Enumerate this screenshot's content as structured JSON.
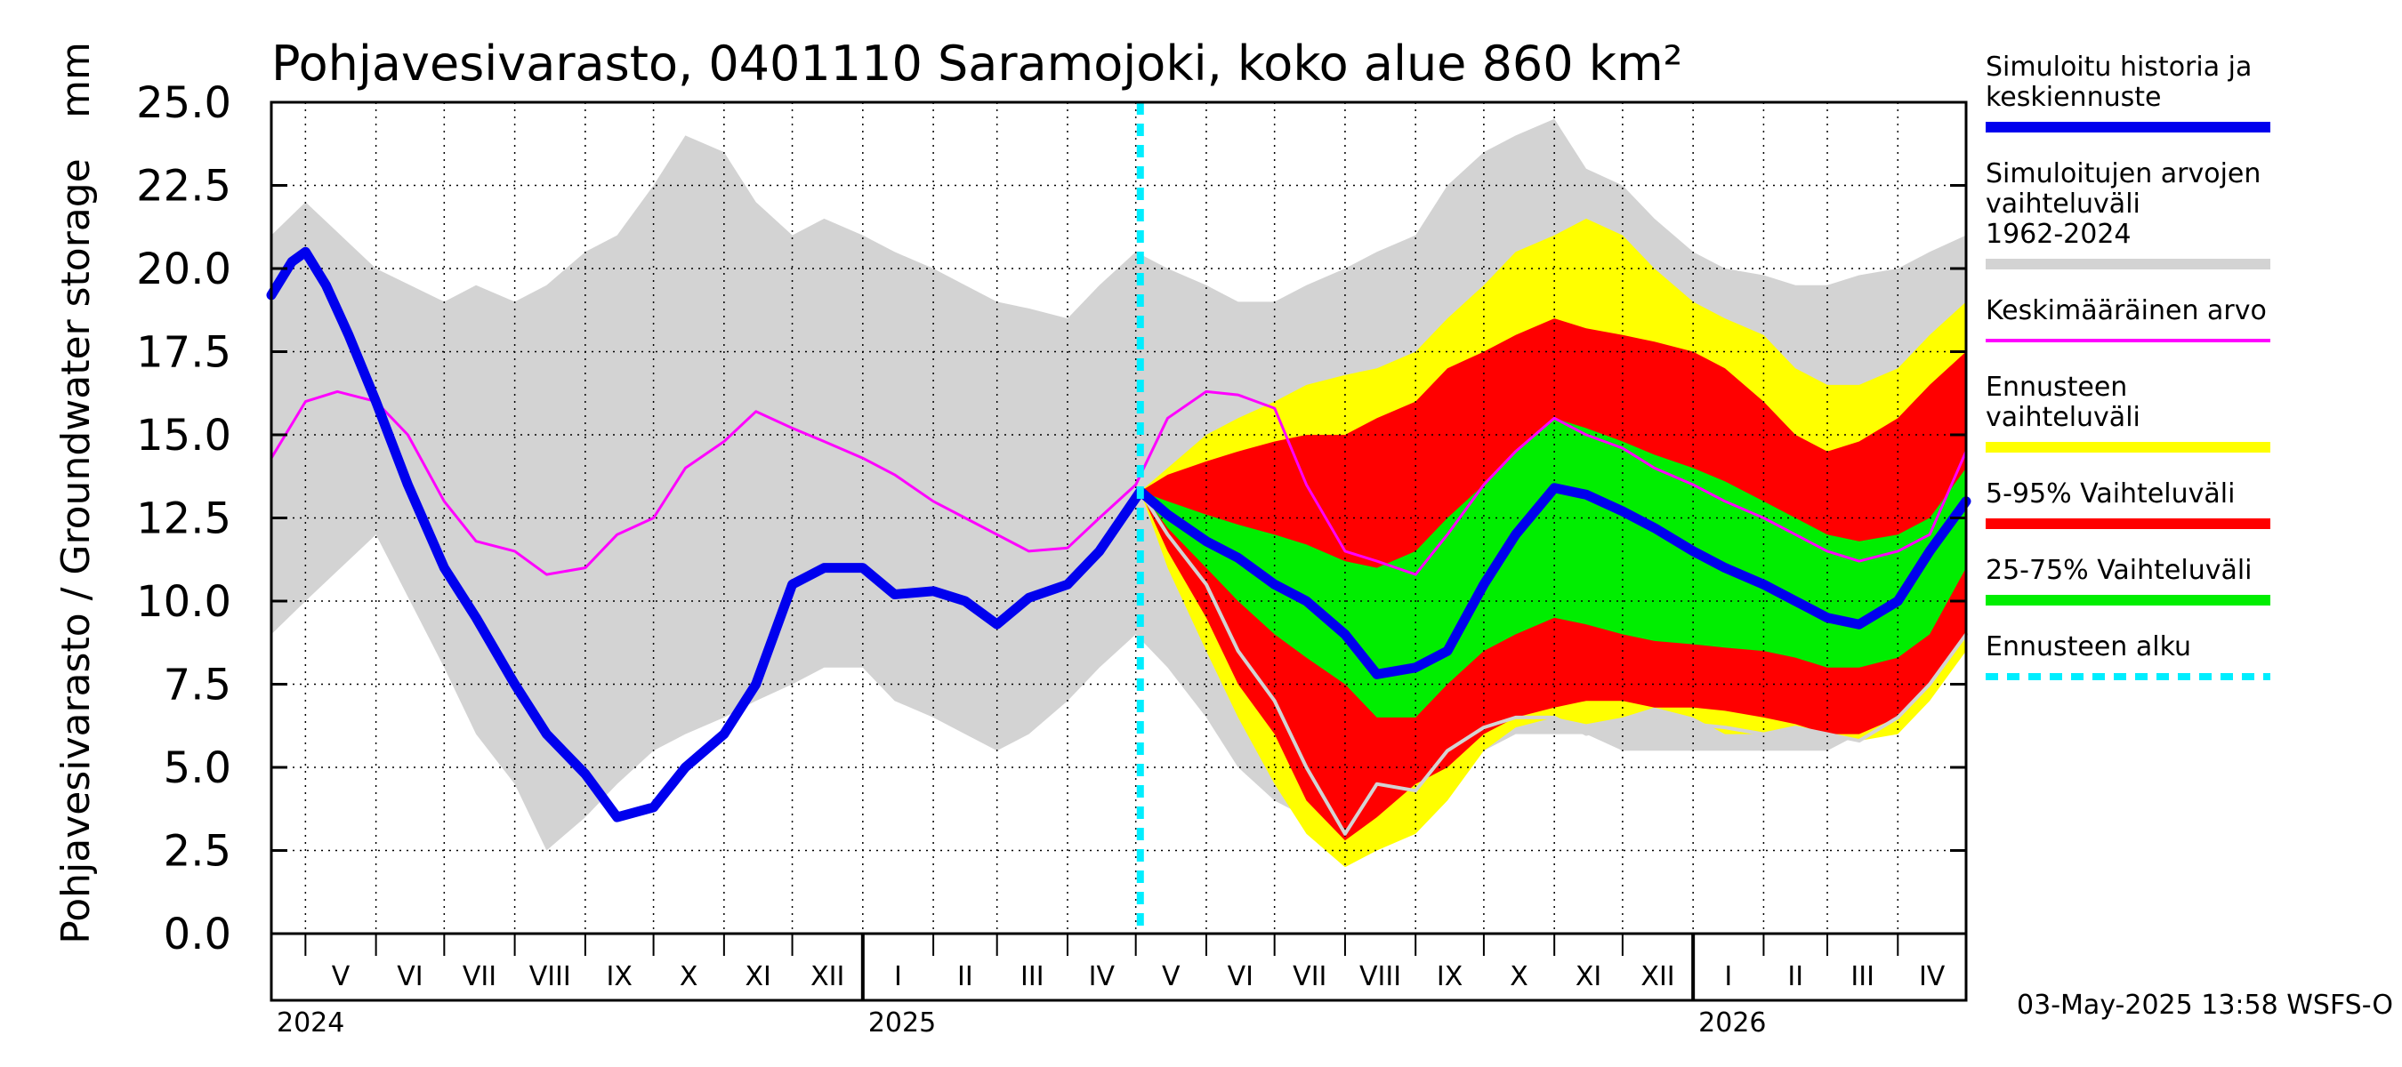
{
  "chart_data": {
    "type": "area",
    "title": "Pohjavesivarasto, 0401110 Saramojoki, koko alue 860 km²",
    "ylabel": "Pohjavesivarasto / Groundwater storage",
    "yunit": "mm",
    "ylim": [
      0,
      25
    ],
    "y_ticks": [
      "0.0",
      "2.5",
      "5.0",
      "7.5",
      "10.0",
      "12.5",
      "15.0",
      "17.5",
      "20.0",
      "22.5",
      "25.0"
    ],
    "x_start": "2024-04-16",
    "x_end": "2026-05-01",
    "forecast_start": "2025-05-03",
    "grid": true,
    "months": [
      {
        "label": "V",
        "start": "2024-05-01",
        "end": "2024-06-01"
      },
      {
        "label": "VI",
        "start": "2024-06-01",
        "end": "2024-07-01"
      },
      {
        "label": "VII",
        "start": "2024-07-01",
        "end": "2024-08-01"
      },
      {
        "label": "VIII",
        "start": "2024-08-01",
        "end": "2024-09-01"
      },
      {
        "label": "IX",
        "start": "2024-09-01",
        "end": "2024-10-01"
      },
      {
        "label": "X",
        "start": "2024-10-01",
        "end": "2024-11-01"
      },
      {
        "label": "XI",
        "start": "2024-11-01",
        "end": "2024-12-01"
      },
      {
        "label": "XII",
        "start": "2024-12-01",
        "end": "2025-01-01"
      },
      {
        "label": "I",
        "start": "2025-01-01",
        "end": "2025-02-01"
      },
      {
        "label": "II",
        "start": "2025-02-01",
        "end": "2025-03-01"
      },
      {
        "label": "III",
        "start": "2025-03-01",
        "end": "2025-04-01"
      },
      {
        "label": "IV",
        "start": "2025-04-01",
        "end": "2025-05-01"
      },
      {
        "label": "V",
        "start": "2025-05-01",
        "end": "2025-06-01"
      },
      {
        "label": "VI",
        "start": "2025-06-01",
        "end": "2025-07-01"
      },
      {
        "label": "VII",
        "start": "2025-07-01",
        "end": "2025-08-01"
      },
      {
        "label": "VIII",
        "start": "2025-08-01",
        "end": "2025-09-01"
      },
      {
        "label": "IX",
        "start": "2025-09-01",
        "end": "2025-10-01"
      },
      {
        "label": "X",
        "start": "2025-10-01",
        "end": "2025-11-01"
      },
      {
        "label": "XI",
        "start": "2025-11-01",
        "end": "2025-12-01"
      },
      {
        "label": "XII",
        "start": "2025-12-01",
        "end": "2026-01-01"
      },
      {
        "label": "I",
        "start": "2026-01-01",
        "end": "2026-02-01"
      },
      {
        "label": "II",
        "start": "2026-02-01",
        "end": "2026-03-01"
      },
      {
        "label": "III",
        "start": "2026-03-01",
        "end": "2026-04-01"
      },
      {
        "label": "IV",
        "start": "2026-04-01",
        "end": "2026-05-01"
      }
    ],
    "years": [
      {
        "label": "2024",
        "start": "2024-04-16"
      },
      {
        "label": "2025",
        "start": "2025-01-01"
      },
      {
        "label": "2026",
        "start": "2026-01-01"
      }
    ],
    "bands": [
      {
        "name": "Simuloitujen arvojen vaihteluväli 1962-2024",
        "color": "#d3d3d3",
        "x": [
          "2024-04-16",
          "2024-05-01",
          "2024-06-01",
          "2024-07-01",
          "2024-07-15",
          "2024-08-01",
          "2024-08-15",
          "2024-09-01",
          "2024-09-15",
          "2024-10-01",
          "2024-10-15",
          "2024-11-01",
          "2024-11-15",
          "2024-12-01",
          "2024-12-15",
          "2025-01-01",
          "2025-01-15",
          "2025-02-01",
          "2025-02-15",
          "2025-03-01",
          "2025-03-15",
          "2025-04-01",
          "2025-04-15",
          "2025-05-01",
          "2025-05-15",
          "2025-06-01",
          "2025-06-15",
          "2025-07-01",
          "2025-07-15",
          "2025-08-01",
          "2025-08-15",
          "2025-09-01",
          "2025-09-15",
          "2025-10-01",
          "2025-10-15",
          "2025-11-01",
          "2025-11-15",
          "2025-12-01",
          "2025-12-15",
          "2026-01-01",
          "2026-01-15",
          "2026-02-01",
          "2026-02-15",
          "2026-03-01",
          "2026-03-15",
          "2026-04-01",
          "2026-04-15",
          "2026-05-01"
        ],
        "upper": [
          21.0,
          22.0,
          20.0,
          19.0,
          19.5,
          19.0,
          19.5,
          20.5,
          21.0,
          22.5,
          24.0,
          23.5,
          22.0,
          21.0,
          21.5,
          21.0,
          20.5,
          20.0,
          19.5,
          19.0,
          18.8,
          18.5,
          19.5,
          20.5,
          20.0,
          19.5,
          19.0,
          19.0,
          19.5,
          20.0,
          20.5,
          21.0,
          22.5,
          23.5,
          24.0,
          24.5,
          23.0,
          22.5,
          21.5,
          20.5,
          20.0,
          19.8,
          19.5,
          19.5,
          19.8,
          20.0,
          20.5,
          21.0
        ],
        "lower": [
          9.0,
          10.0,
          12.0,
          8.0,
          6.0,
          4.5,
          2.5,
          3.5,
          4.5,
          5.5,
          6.0,
          6.5,
          7.0,
          7.5,
          8.0,
          8.0,
          7.0,
          6.5,
          6.0,
          5.5,
          6.0,
          7.0,
          8.0,
          9.0,
          8.0,
          6.5,
          5.0,
          4.0,
          3.5,
          3.5,
          4.0,
          4.5,
          5.0,
          5.5,
          6.0,
          6.0,
          6.0,
          5.5,
          5.5,
          5.5,
          5.5,
          5.5,
          5.5,
          5.5,
          6.0,
          6.5,
          7.5,
          9.0
        ]
      },
      {
        "name": "Ennusteen vaihteluväli",
        "color": "#ffff00",
        "x": [
          "2025-05-03",
          "2025-05-15",
          "2025-06-01",
          "2025-06-15",
          "2025-07-01",
          "2025-07-15",
          "2025-08-01",
          "2025-08-15",
          "2025-09-01",
          "2025-09-15",
          "2025-10-01",
          "2025-10-15",
          "2025-11-01",
          "2025-11-15",
          "2025-12-01",
          "2025-12-15",
          "2026-01-01",
          "2026-01-15",
          "2026-02-01",
          "2026-02-15",
          "2026-03-01",
          "2026-03-15",
          "2026-04-01",
          "2026-04-15",
          "2026-05-01"
        ],
        "upper": [
          13.3,
          14.0,
          15.0,
          15.5,
          16.0,
          16.5,
          16.8,
          17.0,
          17.5,
          18.5,
          19.5,
          20.5,
          21.0,
          21.5,
          21.0,
          20.0,
          19.0,
          18.5,
          18.0,
          17.0,
          16.5,
          16.5,
          17.0,
          18.0,
          19.0
        ],
        "lower": [
          13.3,
          11.0,
          8.5,
          6.5,
          4.5,
          3.0,
          2.0,
          2.5,
          3.0,
          4.0,
          5.5,
          6.2,
          6.5,
          6.3,
          6.5,
          6.8,
          6.5,
          6.0,
          6.0,
          6.2,
          6.0,
          5.8,
          6.0,
          7.0,
          8.5
        ]
      },
      {
        "name": "5-95% Vaihteluväli",
        "color": "#ff0000",
        "x": [
          "2025-05-03",
          "2025-05-15",
          "2025-06-01",
          "2025-06-15",
          "2025-07-01",
          "2025-07-15",
          "2025-08-01",
          "2025-08-15",
          "2025-09-01",
          "2025-09-15",
          "2025-10-01",
          "2025-10-15",
          "2025-11-01",
          "2025-11-15",
          "2025-12-01",
          "2025-12-15",
          "2026-01-01",
          "2026-01-15",
          "2026-02-01",
          "2026-02-15",
          "2026-03-01",
          "2026-03-15",
          "2026-04-01",
          "2026-04-15",
          "2026-05-01"
        ],
        "upper": [
          13.3,
          13.8,
          14.2,
          14.5,
          14.8,
          15.0,
          15.0,
          15.5,
          16.0,
          17.0,
          17.5,
          18.0,
          18.5,
          18.2,
          18.0,
          17.8,
          17.5,
          17.0,
          16.0,
          15.0,
          14.5,
          14.8,
          15.5,
          16.5,
          17.5
        ],
        "lower": [
          13.3,
          11.5,
          9.5,
          7.5,
          6.0,
          4.0,
          2.8,
          3.5,
          4.5,
          5.0,
          6.0,
          6.5,
          6.8,
          7.0,
          7.0,
          6.8,
          6.8,
          6.7,
          6.5,
          6.3,
          6.0,
          6.0,
          6.5,
          7.5,
          9.0
        ]
      },
      {
        "name": "25-75% Vaihteluväli",
        "color": "#00ee00",
        "x": [
          "2025-05-03",
          "2025-05-15",
          "2025-06-01",
          "2025-06-15",
          "2025-07-01",
          "2025-07-15",
          "2025-08-01",
          "2025-08-15",
          "2025-09-01",
          "2025-09-15",
          "2025-10-01",
          "2025-10-15",
          "2025-11-01",
          "2025-11-15",
          "2025-12-01",
          "2025-12-15",
          "2026-01-01",
          "2026-01-15",
          "2026-02-01",
          "2026-02-15",
          "2026-03-01",
          "2026-03-15",
          "2026-04-01",
          "2026-04-15",
          "2026-05-01"
        ],
        "upper": [
          13.3,
          13.0,
          12.6,
          12.3,
          12.0,
          11.7,
          11.2,
          11.0,
          11.5,
          12.5,
          13.5,
          14.5,
          15.5,
          15.2,
          14.8,
          14.4,
          14.0,
          13.6,
          13.0,
          12.5,
          12.0,
          11.8,
          12.0,
          12.5,
          14.0
        ],
        "lower": [
          13.3,
          12.2,
          11.0,
          10.0,
          9.0,
          8.3,
          7.5,
          6.5,
          6.5,
          7.5,
          8.5,
          9.0,
          9.5,
          9.3,
          9.0,
          8.8,
          8.7,
          8.6,
          8.5,
          8.3,
          8.0,
          8.0,
          8.3,
          9.0,
          11.0
        ]
      }
    ],
    "series": [
      {
        "name": "Keskimääräinen arvo",
        "color": "#ff00ff",
        "x": [
          "2024-04-16",
          "2024-05-01",
          "2024-05-15",
          "2024-06-01",
          "2024-06-15",
          "2024-07-01",
          "2024-07-15",
          "2024-08-01",
          "2024-08-15",
          "2024-09-01",
          "2024-09-15",
          "2024-10-01",
          "2024-10-15",
          "2024-11-01",
          "2024-11-15",
          "2024-12-01",
          "2024-12-15",
          "2025-01-01",
          "2025-01-15",
          "2025-02-01",
          "2025-02-15",
          "2025-03-01",
          "2025-03-15",
          "2025-04-01",
          "2025-04-15",
          "2025-05-01",
          "2025-05-15",
          "2025-06-01",
          "2025-06-15",
          "2025-07-01",
          "2025-07-15",
          "2025-08-01",
          "2025-08-15",
          "2025-09-01",
          "2025-09-15",
          "2025-10-01",
          "2025-10-15",
          "2025-11-01",
          "2025-11-15",
          "2025-12-01",
          "2025-12-15",
          "2026-01-01",
          "2026-01-15",
          "2026-02-01",
          "2026-02-15",
          "2026-03-01",
          "2026-03-15",
          "2026-04-01",
          "2026-04-15",
          "2026-05-01"
        ],
        "y": [
          14.3,
          16.0,
          16.3,
          16.0,
          15.0,
          13.0,
          11.8,
          11.5,
          10.8,
          11.0,
          12.0,
          12.5,
          14.0,
          14.8,
          15.7,
          15.2,
          14.8,
          14.3,
          13.8,
          13.0,
          12.5,
          12.0,
          11.5,
          11.6,
          12.5,
          13.5,
          15.5,
          16.3,
          16.2,
          15.8,
          13.5,
          11.5,
          11.2,
          10.8,
          12.0,
          13.5,
          14.5,
          15.5,
          15.0,
          14.6,
          14.0,
          13.5,
          13.0,
          12.5,
          12.0,
          11.5,
          11.2,
          11.5,
          12.0,
          14.5
        ]
      },
      {
        "name": "Simuloitu historia ja keskiennuste",
        "color": "#0000ee",
        "x": [
          "2024-04-16",
          "2024-04-25",
          "2024-05-01",
          "2024-05-10",
          "2024-05-20",
          "2024-06-01",
          "2024-06-15",
          "2024-07-01",
          "2024-07-15",
          "2024-08-01",
          "2024-08-15",
          "2024-09-01",
          "2024-09-15",
          "2024-10-01",
          "2024-10-15",
          "2024-11-01",
          "2024-11-15",
          "2024-12-01",
          "2024-12-15",
          "2025-01-01",
          "2025-01-15",
          "2025-02-01",
          "2025-02-15",
          "2025-03-01",
          "2025-03-15",
          "2025-04-01",
          "2025-04-15",
          "2025-05-03",
          "2025-05-15",
          "2025-06-01",
          "2025-06-15",
          "2025-07-01",
          "2025-07-15",
          "2025-08-01",
          "2025-08-15",
          "2025-09-01",
          "2025-09-15",
          "2025-10-01",
          "2025-10-15",
          "2025-11-01",
          "2025-11-15",
          "2025-12-01",
          "2025-12-15",
          "2026-01-01",
          "2026-01-15",
          "2026-02-01",
          "2026-02-15",
          "2026-03-01",
          "2026-03-15",
          "2026-04-01",
          "2026-04-15",
          "2026-05-01"
        ],
        "y": [
          19.2,
          20.2,
          20.5,
          19.5,
          18.0,
          16.0,
          13.5,
          11.0,
          9.5,
          7.5,
          6.0,
          4.8,
          3.5,
          3.8,
          5.0,
          6.0,
          7.5,
          10.5,
          11.0,
          11.0,
          10.2,
          10.3,
          10.0,
          9.3,
          10.1,
          10.5,
          11.5,
          13.3,
          12.6,
          11.8,
          11.3,
          10.5,
          10.0,
          9.0,
          7.8,
          8.0,
          8.5,
          10.5,
          12.0,
          13.4,
          13.2,
          12.7,
          12.2,
          11.5,
          11.0,
          10.5,
          10.0,
          9.5,
          9.3,
          10.0,
          11.5,
          13.0
        ]
      },
      {
        "name": "",
        "color": "#d3d3d3",
        "x": [
          "2025-05-03",
          "2025-05-15",
          "2025-06-01",
          "2025-06-15",
          "2025-07-01",
          "2025-07-15",
          "2025-08-01",
          "2025-08-15",
          "2025-09-01",
          "2025-09-15",
          "2025-10-01",
          "2025-10-15",
          "2025-11-01",
          "2025-11-15",
          "2025-12-01",
          "2025-12-15",
          "2026-01-01",
          "2026-01-15",
          "2026-02-01",
          "2026-02-15",
          "2026-03-01",
          "2026-03-15",
          "2026-04-01",
          "2026-04-15",
          "2026-05-01"
        ],
        "y": [
          13.3,
          12.0,
          10.5,
          8.5,
          7.0,
          5.0,
          3.0,
          4.5,
          4.3,
          5.5,
          6.2,
          6.5,
          6.5,
          6.0,
          6.3,
          6.5,
          6.3,
          6.2,
          6.0,
          6.2,
          6.0,
          5.8,
          6.5,
          7.5,
          9.0
        ]
      }
    ],
    "legend": [
      {
        "label": "Simuloitu historia ja keskiennuste",
        "color": "#0000ee",
        "style": "thick"
      },
      {
        "label": "Simuloitujen arvojen vaihteluväli 1962-2024",
        "color": "#d3d3d3",
        "style": "thick"
      },
      {
        "label": "Keskimääräinen arvo",
        "color": "#ff00ff",
        "style": "thin"
      },
      {
        "label": "Ennusteen vaihteluväli",
        "color": "#ffff00",
        "style": "thick"
      },
      {
        "label": "5-95% Vaihteluväli",
        "color": "#ff0000",
        "style": "thick"
      },
      {
        "label": "25-75% Vaihteluväli",
        "color": "#00ee00",
        "style": "thick"
      },
      {
        "label": "Ennusteen alku",
        "color": "#00eeff",
        "style": "dashed"
      }
    ],
    "legend_position": "right",
    "footer": "03-May-2025 13:58 WSFS-O"
  }
}
